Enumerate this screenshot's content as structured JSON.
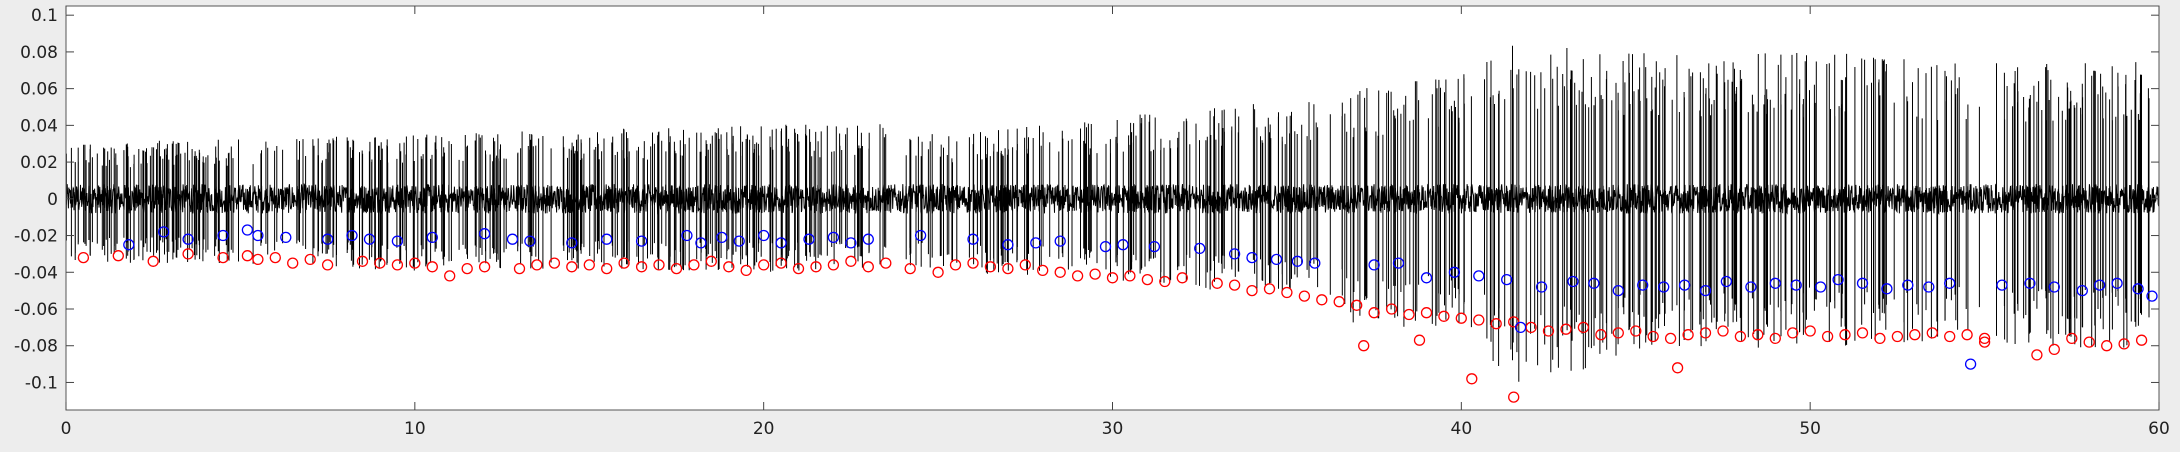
{
  "chart_data": {
    "type": "scatter",
    "title": "",
    "xlabel": "",
    "ylabel": "",
    "xlim": [
      0,
      60
    ],
    "ylim": [
      -0.115,
      0.105
    ],
    "grid": false,
    "x_ticks": [
      0,
      10,
      20,
      30,
      40,
      50,
      60
    ],
    "x_tick_labels": [
      "0",
      "10",
      "20",
      "30",
      "40",
      "50",
      "60"
    ],
    "y_ticks": [
      0.1,
      0.08,
      0.06,
      0.04,
      0.02,
      0,
      -0.02,
      -0.04,
      -0.06,
      -0.08,
      -0.1
    ],
    "y_tick_labels": [
      "0.1",
      "0.08",
      "0.06",
      "0.04",
      "0.02",
      "0",
      "-0.02",
      "-0.04",
      "-0.06",
      "-0.08",
      "-0.1"
    ],
    "colors": {
      "trace": "#000000",
      "series_red": "#ff0000",
      "series_blue": "#0000ff",
      "plot_bg": "#ffffff",
      "figure_bg": "#ededed"
    },
    "signal_envelope": {
      "description_of_series": "black raw trace with spikes",
      "x": [
        0,
        5,
        10,
        15,
        20,
        23.5,
        25,
        30,
        33,
        36,
        37,
        40,
        41.5,
        45,
        50,
        55,
        60
      ],
      "upper": [
        0.03,
        0.033,
        0.035,
        0.038,
        0.04,
        0.042,
        0.035,
        0.045,
        0.05,
        0.055,
        0.06,
        0.07,
        0.085,
        0.08,
        0.08,
        0.075,
        0.075
      ],
      "lower": [
        -0.035,
        -0.035,
        -0.04,
        -0.038,
        -0.04,
        -0.038,
        -0.04,
        -0.045,
        -0.05,
        -0.055,
        -0.07,
        -0.07,
        -0.105,
        -0.085,
        -0.08,
        -0.08,
        -0.082
      ],
      "noise": 0.008
    },
    "series": [
      {
        "color": "red",
        "x": [
          0.5,
          1.5,
          2.5,
          3.5,
          4.5,
          5.2,
          5.5,
          6.0,
          6.5,
          7.0,
          7.5,
          8.5,
          9.0,
          9.5,
          10.0,
          10.5,
          11.0,
          11.5,
          12.0,
          13.0,
          13.5,
          14.0,
          14.5,
          15.0,
          15.5,
          16.0,
          16.5,
          17.0,
          17.5,
          18.0,
          18.5,
          19.0,
          19.5,
          20.0,
          20.5,
          21.0,
          21.5,
          22.0,
          22.5,
          23.0,
          23.5,
          24.2,
          25.0,
          25.5,
          26.0,
          26.5,
          27.0,
          27.5,
          28.0,
          28.5,
          29.0,
          29.5,
          30.0,
          30.5,
          31.0,
          31.5,
          32.0,
          33.0,
          33.5,
          34.0,
          34.5,
          35.0,
          35.5,
          36.0,
          36.5,
          37.0,
          37.2,
          37.5,
          38.0,
          38.5,
          39.0,
          39.5,
          40.0,
          40.5,
          41.0,
          41.5,
          42.0,
          42.5,
          43.0,
          43.5,
          44.0,
          44.5,
          45.0,
          45.5,
          46.0,
          46.2,
          46.5,
          47.0,
          47.5,
          48.0,
          48.5,
          49.0,
          49.5,
          50.0,
          50.5,
          51.0,
          51.5,
          52.0,
          52.5,
          53.0,
          53.5,
          54.0,
          54.5,
          55.0,
          56.5,
          57.0,
          57.5,
          58.0,
          58.5,
          59.0,
          59.5
        ],
        "y": [
          -0.032,
          -0.031,
          -0.034,
          -0.03,
          -0.032,
          -0.031,
          -0.033,
          -0.032,
          -0.035,
          -0.033,
          -0.036,
          -0.034,
          -0.035,
          -0.036,
          -0.035,
          -0.037,
          -0.042,
          -0.038,
          -0.037,
          -0.038,
          -0.036,
          -0.035,
          -0.037,
          -0.036,
          -0.038,
          -0.035,
          -0.037,
          -0.036,
          -0.038,
          -0.036,
          -0.034,
          -0.037,
          -0.039,
          -0.036,
          -0.035,
          -0.038,
          -0.037,
          -0.036,
          -0.034,
          -0.037,
          -0.035,
          -0.038,
          -0.04,
          -0.036,
          -0.035,
          -0.037,
          -0.038,
          -0.036,
          -0.039,
          -0.04,
          -0.042,
          -0.041,
          -0.043,
          -0.042,
          -0.044,
          -0.045,
          -0.043,
          -0.046,
          -0.047,
          -0.05,
          -0.049,
          -0.051,
          -0.053,
          -0.055,
          -0.056,
          -0.058,
          -0.08,
          -0.062,
          -0.06,
          -0.063,
          -0.062,
          -0.064,
          -0.065,
          -0.066,
          -0.068,
          -0.067,
          -0.07,
          -0.072,
          -0.071,
          -0.07,
          -0.074,
          -0.073,
          -0.072,
          -0.075,
          -0.076,
          -0.092,
          -0.074,
          -0.073,
          -0.072,
          -0.075,
          -0.074,
          -0.076,
          -0.073,
          -0.072,
          -0.075,
          -0.074,
          -0.073,
          -0.076,
          -0.075,
          -0.074,
          -0.073,
          -0.075,
          -0.074,
          -0.076,
          -0.085,
          -0.082,
          -0.076,
          -0.078,
          -0.08,
          -0.079,
          -0.077
        ]
      },
      {
        "color": "red-extra",
        "x": [
          38.8,
          40.3,
          41.5,
          55.0
        ],
        "y": [
          -0.077,
          -0.098,
          -0.108,
          -0.078
        ]
      },
      {
        "color": "blue",
        "x": [
          1.8,
          2.8,
          3.5,
          4.5,
          5.2,
          5.5,
          6.3,
          7.5,
          8.2,
          8.7,
          9.5,
          10.5,
          12.0,
          12.8,
          13.3,
          14.5,
          15.5,
          16.5,
          17.8,
          18.2,
          18.8,
          19.3,
          20.0,
          20.5,
          21.3,
          22.0,
          22.5,
          23.0,
          24.5,
          26.0,
          27.0,
          27.8,
          28.5,
          29.8,
          30.3,
          31.2,
          32.5,
          33.5,
          34.0,
          34.7,
          35.3,
          35.8,
          37.5,
          38.2,
          39.0,
          39.8,
          40.5,
          41.3,
          41.7,
          42.3,
          43.2,
          43.8,
          44.5,
          45.2,
          45.8,
          46.4,
          47.0,
          47.6,
          48.3,
          49.0,
          49.6,
          50.3,
          50.8,
          51.5,
          52.2,
          52.8,
          53.4,
          54.0,
          54.6,
          55.5,
          56.3,
          57.0,
          57.8,
          58.3,
          58.8,
          59.4,
          59.8
        ],
        "y": [
          -0.025,
          -0.018,
          -0.022,
          -0.02,
          -0.017,
          -0.02,
          -0.021,
          -0.022,
          -0.02,
          -0.022,
          -0.023,
          -0.021,
          -0.019,
          -0.022,
          -0.023,
          -0.024,
          -0.022,
          -0.023,
          -0.02,
          -0.024,
          -0.021,
          -0.023,
          -0.02,
          -0.024,
          -0.022,
          -0.021,
          -0.024,
          -0.022,
          -0.02,
          -0.022,
          -0.025,
          -0.024,
          -0.023,
          -0.026,
          -0.025,
          -0.026,
          -0.027,
          -0.03,
          -0.032,
          -0.033,
          -0.034,
          -0.035,
          -0.036,
          -0.035,
          -0.043,
          -0.04,
          -0.042,
          -0.044,
          -0.07,
          -0.048,
          -0.045,
          -0.046,
          -0.05,
          -0.047,
          -0.048,
          -0.047,
          -0.05,
          -0.045,
          -0.048,
          -0.046,
          -0.047,
          -0.048,
          -0.044,
          -0.046,
          -0.049,
          -0.047,
          -0.048,
          -0.046,
          -0.09,
          -0.047,
          -0.046,
          -0.048,
          -0.05,
          -0.047,
          -0.046,
          -0.049,
          -0.053
        ]
      }
    ]
  }
}
